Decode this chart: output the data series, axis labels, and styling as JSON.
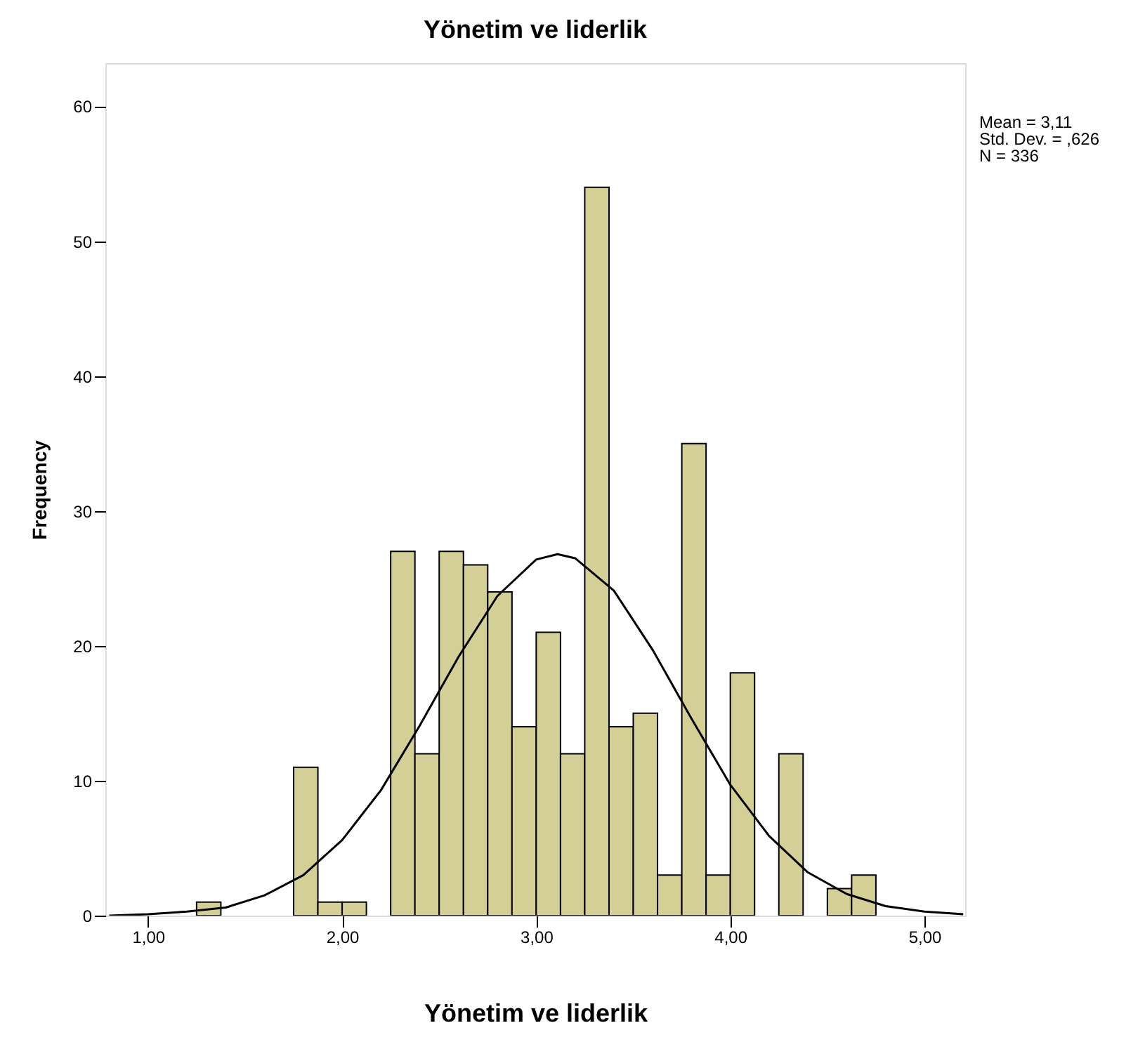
{
  "chart_data": {
    "type": "histogram",
    "title": "Yönetim ve liderlik",
    "xlabel": "Yönetim ve liderlik",
    "ylabel": "Frequency",
    "bins": [
      1.25,
      1.375,
      1.5,
      1.625,
      1.75,
      1.875,
      2.0,
      2.125,
      2.25,
      2.375,
      2.5,
      2.625,
      2.75,
      2.875,
      3.0,
      3.125,
      3.25,
      3.375,
      3.5,
      3.625,
      3.75,
      3.875,
      4.0,
      4.125,
      4.25,
      4.375,
      4.5,
      4.625,
      4.75
    ],
    "values": [
      1,
      0,
      0,
      0,
      11,
      1,
      1,
      0,
      27,
      12,
      27,
      26,
      24,
      14,
      21,
      12,
      54,
      14,
      15,
      3,
      35,
      3,
      18,
      0,
      12,
      0,
      2,
      3
    ],
    "color": "#d3cf96",
    "series": [
      {
        "type": "line",
        "color": "#000000",
        "x": [
          0.8,
          1.0,
          1.2,
          1.4,
          1.6,
          1.8,
          2.0,
          2.2,
          2.4,
          2.6,
          2.8,
          3.0,
          3.11,
          3.2,
          3.4,
          3.6,
          3.8,
          4.0,
          4.2,
          4.4,
          4.6,
          4.8,
          5.0,
          5.2
        ],
        "values": [
          0.0,
          0.1,
          0.3,
          0.6,
          1.5,
          3.0,
          5.6,
          9.3,
          14.1,
          19.2,
          23.7,
          26.4,
          26.8,
          26.5,
          24.1,
          19.7,
          14.6,
          9.7,
          5.9,
          3.2,
          1.6,
          0.7,
          0.3,
          0.1
        ]
      }
    ],
    "xlim": [
      0.78,
      5.21
    ],
    "ylim": [
      0,
      63.2
    ],
    "xticks": [
      {
        "value": 1,
        "label": "1,00"
      },
      {
        "value": 2,
        "label": "2,00"
      },
      {
        "value": 3,
        "label": "3,00"
      },
      {
        "value": 4,
        "label": "4,00"
      },
      {
        "value": 5,
        "label": "5,00"
      }
    ],
    "yticks": [
      0,
      10,
      20,
      30,
      40,
      50,
      60
    ],
    "annotations": [
      "Mean = 3,11",
      "Std. Dev. = ,626",
      "N = 336"
    ]
  }
}
